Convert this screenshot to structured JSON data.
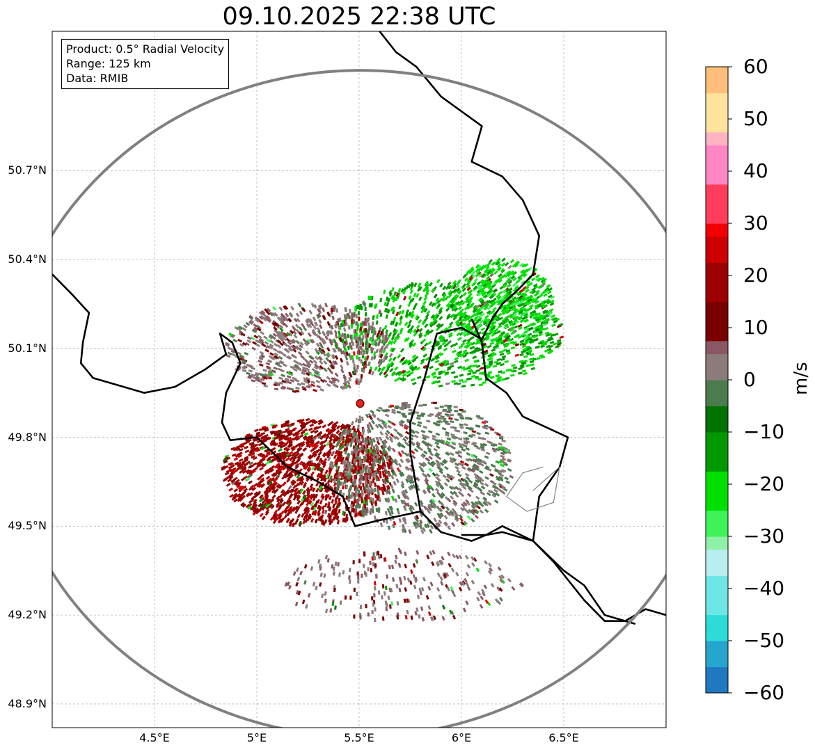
{
  "chart_data": {
    "type": "heatmap",
    "title": "09.10.2025 22:38 UTC",
    "subtype": "radar_ppi_radial_velocity",
    "info_box": [
      "Product: 0.5° Radial Velocity",
      "Range: 125 km",
      "Data: RMIB"
    ],
    "radar_site": {
      "lon": 5.505,
      "lat": 49.914
    },
    "range_km": 125,
    "xlim": [
      4.0,
      7.0
    ],
    "ylim": [
      48.82,
      51.17
    ],
    "x_ticks": [
      {
        "value": 4.5,
        "label": "4.5°E"
      },
      {
        "value": 5.0,
        "label": "5°E"
      },
      {
        "value": 5.5,
        "label": "5.5°E"
      },
      {
        "value": 6.0,
        "label": "6°E"
      },
      {
        "value": 6.5,
        "label": "6.5°E"
      }
    ],
    "y_ticks": [
      {
        "value": 48.9,
        "label": "48.9°N"
      },
      {
        "value": 49.2,
        "label": "49.2°N"
      },
      {
        "value": 49.5,
        "label": "49.5°N"
      },
      {
        "value": 49.8,
        "label": "49.8°N"
      },
      {
        "value": 50.1,
        "label": "50.1°N"
      },
      {
        "value": 50.4,
        "label": "50.4°N"
      },
      {
        "value": 50.7,
        "label": "50.7°N"
      }
    ],
    "grid": true,
    "colorbar": {
      "label": "m/s",
      "range": [
        -60,
        60
      ],
      "ticks": [
        {
          "value": 60,
          "label": "60"
        },
        {
          "value": 50,
          "label": "50"
        },
        {
          "value": 40,
          "label": "40"
        },
        {
          "value": 30,
          "label": "30"
        },
        {
          "value": 20,
          "label": "20"
        },
        {
          "value": 10,
          "label": "10"
        },
        {
          "value": 0,
          "label": "0"
        },
        {
          "value": -10,
          "label": "−10"
        },
        {
          "value": -20,
          "label": "−20"
        },
        {
          "value": -30,
          "label": "−30"
        },
        {
          "value": -40,
          "label": "−40"
        },
        {
          "value": -50,
          "label": "−50"
        },
        {
          "value": -60,
          "label": "−60"
        }
      ],
      "stops": [
        {
          "value": -60,
          "color": "#1f78c0"
        },
        {
          "value": -55,
          "color": "#25a6cf"
        },
        {
          "value": -50,
          "color": "#2ddbd9"
        },
        {
          "value": -45,
          "color": "#6fe6e6"
        },
        {
          "value": -38,
          "color": "#b8eef0"
        },
        {
          "value": -33,
          "color": "#8ff0a8"
        },
        {
          "value": -30,
          "color": "#3ef25a"
        },
        {
          "value": -24,
          "color": "#00e000"
        },
        {
          "value": -17,
          "color": "#009a00"
        },
        {
          "value": -10,
          "color": "#007200"
        },
        {
          "value": -6,
          "color": "#4a7c4e"
        },
        {
          "value": 0,
          "color": "#8b7b7b"
        },
        {
          "value": 5,
          "color": "#8a5864"
        },
        {
          "value": 8,
          "color": "#7a0000"
        },
        {
          "value": 14,
          "color": "#9c0000"
        },
        {
          "value": 22,
          "color": "#cc0000"
        },
        {
          "value": 28,
          "color": "#f50000"
        },
        {
          "value": 30,
          "color": "#ff3d5a"
        },
        {
          "value": 38,
          "color": "#ff86c4"
        },
        {
          "value": 44,
          "color": "#ffb3c0"
        },
        {
          "value": 48,
          "color": "#ffe39c"
        },
        {
          "value": 55,
          "color": "#ffbf7a"
        },
        {
          "value": 60,
          "color": "#ff9a58"
        }
      ]
    },
    "echo_regions": [
      {
        "name": "inbound-green-northeast",
        "velocity_ms": -17,
        "lon": 5.95,
        "lat": 50.15,
        "rx": 0.55,
        "ry": 0.18,
        "count": 900
      },
      {
        "name": "inbound-green-east",
        "velocity_ms": -20,
        "lon": 6.2,
        "lat": 50.25,
        "rx": 0.25,
        "ry": 0.15,
        "count": 600
      },
      {
        "name": "outbound-red-southwest",
        "velocity_ms": 18,
        "lon": 5.25,
        "lat": 49.68,
        "rx": 0.42,
        "ry": 0.18,
        "count": 1400
      },
      {
        "name": "zero-gray-band",
        "velocity_ms": 1,
        "lon": 5.8,
        "lat": 49.7,
        "rx": 0.45,
        "ry": 0.22,
        "count": 1000
      },
      {
        "name": "mixed-north-west",
        "velocity_ms": 4,
        "lon": 5.25,
        "lat": 50.1,
        "rx": 0.4,
        "ry": 0.15,
        "count": 700
      },
      {
        "name": "scatter-south",
        "velocity_ms": 5,
        "lon": 5.7,
        "lat": 49.3,
        "rx": 0.6,
        "ry": 0.12,
        "count": 250
      }
    ],
    "borders": [
      {
        "name": "border-belgium-west",
        "style": "thick",
        "points": [
          [
            4.0,
            50.35
          ],
          [
            4.1,
            50.28
          ],
          [
            4.18,
            50.22
          ],
          [
            4.15,
            50.12
          ],
          [
            4.14,
            50.05
          ],
          [
            4.2,
            50.0
          ],
          [
            4.3,
            49.98
          ],
          [
            4.45,
            49.95
          ],
          [
            4.6,
            49.97
          ],
          [
            4.75,
            50.03
          ],
          [
            4.85,
            50.08
          ],
          [
            4.82,
            50.15
          ],
          [
            4.88,
            50.12
          ],
          [
            4.92,
            50.05
          ],
          [
            4.85,
            49.95
          ],
          [
            4.83,
            49.85
          ],
          [
            4.87,
            49.79
          ],
          [
            5.0,
            49.8
          ],
          [
            5.15,
            49.7
          ],
          [
            5.3,
            49.65
          ],
          [
            5.42,
            49.6
          ],
          [
            5.48,
            49.5
          ],
          [
            5.6,
            49.52
          ],
          [
            5.8,
            49.55
          ],
          [
            5.9,
            49.48
          ],
          [
            6.05,
            49.45
          ],
          [
            6.12,
            49.47
          ],
          [
            6.2,
            49.5
          ],
          [
            6.35,
            49.45
          ],
          [
            6.45,
            49.38
          ],
          [
            6.6,
            49.25
          ],
          [
            6.7,
            49.18
          ],
          [
            6.8,
            49.18
          ],
          [
            6.9,
            49.22
          ],
          [
            7.0,
            49.2
          ]
        ]
      },
      {
        "name": "border-belgium-east",
        "style": "thick",
        "points": [
          [
            5.8,
            49.55
          ],
          [
            5.75,
            49.75
          ],
          [
            5.75,
            49.85
          ],
          [
            5.82,
            50.0
          ],
          [
            5.88,
            50.15
          ],
          [
            6.0,
            50.17
          ],
          [
            6.1,
            50.13
          ],
          [
            6.15,
            50.2
          ],
          [
            6.2,
            50.25
          ],
          [
            6.28,
            50.3
          ],
          [
            6.35,
            50.35
          ],
          [
            6.38,
            50.48
          ],
          [
            6.3,
            50.6
          ],
          [
            6.2,
            50.68
          ],
          [
            6.05,
            50.73
          ],
          [
            6.1,
            50.85
          ],
          [
            5.9,
            50.95
          ],
          [
            5.78,
            51.05
          ],
          [
            5.68,
            51.1
          ],
          [
            5.6,
            51.17
          ]
        ]
      },
      {
        "name": "border-luxembourg",
        "style": "thick",
        "points": [
          [
            6.05,
            50.2
          ],
          [
            6.1,
            50.12
          ],
          [
            6.12,
            50.0
          ],
          [
            6.22,
            49.95
          ],
          [
            6.3,
            49.87
          ],
          [
            6.52,
            49.8
          ],
          [
            6.48,
            49.7
          ],
          [
            6.38,
            49.6
          ],
          [
            6.35,
            49.45
          ],
          [
            6.2,
            49.48
          ],
          [
            6.12,
            49.47
          ],
          [
            6.0,
            49.47
          ]
        ]
      },
      {
        "name": "border-fr-de",
        "style": "thick",
        "points": [
          [
            6.35,
            49.45
          ],
          [
            6.5,
            49.35
          ],
          [
            6.6,
            49.3
          ],
          [
            6.7,
            49.2
          ],
          [
            6.85,
            49.17
          ]
        ]
      },
      {
        "name": "border-lorraine",
        "style": "thin",
        "points": [
          [
            6.35,
            49.62
          ],
          [
            6.48,
            49.7
          ],
          [
            6.45,
            49.58
          ],
          [
            6.32,
            49.55
          ],
          [
            6.22,
            49.6
          ],
          [
            6.3,
            49.68
          ],
          [
            6.4,
            49.7
          ]
        ]
      }
    ]
  }
}
